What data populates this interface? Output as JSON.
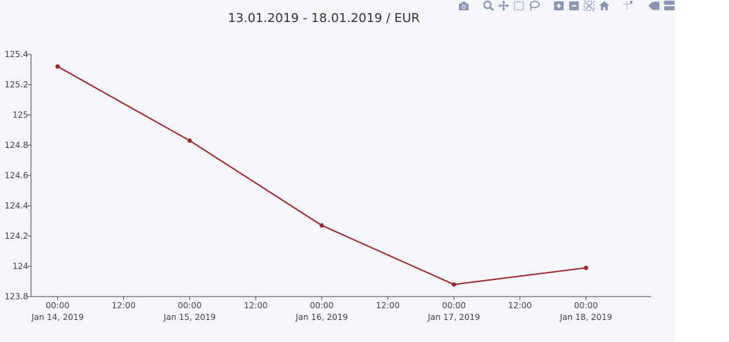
{
  "modebar": {
    "buttons": [
      {
        "name": "camera-icon",
        "title": "Download plot as a png"
      },
      {
        "name": "zoom-icon",
        "title": "Zoom"
      },
      {
        "name": "pan-icon",
        "title": "Pan"
      },
      {
        "name": "box-select-icon",
        "title": "Box Select"
      },
      {
        "name": "lasso-select-icon",
        "title": "Lasso Select"
      },
      {
        "name": "zoom-in-icon",
        "title": "Zoom in"
      },
      {
        "name": "zoom-out-icon",
        "title": "Zoom out"
      },
      {
        "name": "autoscale-icon",
        "title": "Autoscale"
      },
      {
        "name": "reset-axes-icon",
        "title": "Reset axes"
      },
      {
        "name": "spike-lines-icon",
        "title": "Toggle Spike Lines"
      },
      {
        "name": "hover-closest-icon",
        "title": "Show closest data on hover"
      },
      {
        "name": "hover-compare-icon",
        "title": "Compare data on hover"
      }
    ],
    "icon_color": "#8896b4"
  },
  "chart_data": {
    "type": "line",
    "title": "13.01.2019 - 18.01.2019 / EUR",
    "xlabel": "",
    "ylabel": "",
    "x": [
      "2019-01-14 00:00",
      "2019-01-15 00:00",
      "2019-01-16 00:00",
      "2019-01-17 00:00",
      "2019-01-18 00:00"
    ],
    "series": [
      {
        "name": "",
        "values": [
          125.32,
          124.83,
          124.27,
          123.88,
          123.99
        ],
        "color": "#a0262e"
      }
    ],
    "xlim": [
      "2019-01-13 19:10",
      "2019-01-18 11:50"
    ],
    "ylim": [
      123.8,
      125.4
    ],
    "x_ticks": [
      {
        "time": "2019-01-14 00:00",
        "line1": "00:00",
        "line2": "Jan 14, 2019"
      },
      {
        "time": "2019-01-14 12:00",
        "line1": "12:00",
        "line2": ""
      },
      {
        "time": "2019-01-15 00:00",
        "line1": "00:00",
        "line2": "Jan 15, 2019"
      },
      {
        "time": "2019-01-15 12:00",
        "line1": "12:00",
        "line2": ""
      },
      {
        "time": "2019-01-16 00:00",
        "line1": "00:00",
        "line2": "Jan 16, 2019"
      },
      {
        "time": "2019-01-16 12:00",
        "line1": "12:00",
        "line2": ""
      },
      {
        "time": "2019-01-17 00:00",
        "line1": "00:00",
        "line2": "Jan 17, 2019"
      },
      {
        "time": "2019-01-17 12:00",
        "line1": "12:00",
        "line2": ""
      },
      {
        "time": "2019-01-18 00:00",
        "line1": "00:00",
        "line2": "Jan 18, 2019"
      }
    ],
    "y_ticks": [
      {
        "value": 123.8,
        "label": "123.8"
      },
      {
        "value": 124.0,
        "label": "124"
      },
      {
        "value": 124.2,
        "label": "124.2"
      },
      {
        "value": 124.4,
        "label": "124.4"
      },
      {
        "value": 124.6,
        "label": "124.6"
      },
      {
        "value": 124.8,
        "label": "124.8"
      },
      {
        "value": 125.0,
        "label": "125"
      },
      {
        "value": 125.2,
        "label": "125.2"
      },
      {
        "value": 125.4,
        "label": "125.4"
      }
    ],
    "grid": false,
    "background": "#f5f6fa"
  }
}
